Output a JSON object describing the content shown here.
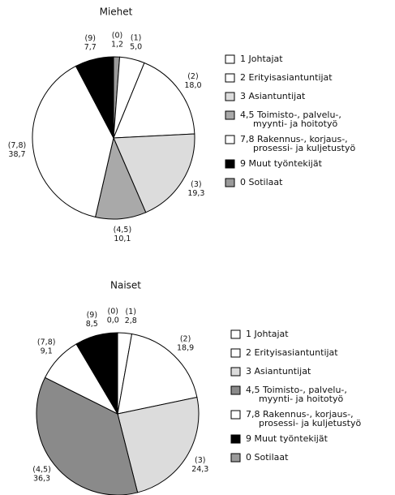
{
  "chart_data": [
    {
      "type": "pie",
      "title": "Miehet",
      "categories": [
        "(0)",
        "(1)",
        "(2)",
        "(3)",
        "(4,5)",
        "(7,8)",
        "(9)"
      ],
      "values": [
        1.2,
        5.0,
        18.0,
        19.3,
        10.1,
        38.7,
        7.7
      ],
      "value_labels": [
        "1,2",
        "5,0",
        "18,0",
        "19,3",
        "10,1",
        "38,7",
        "7,7"
      ],
      "colors": [
        "#9a9a9a",
        "#ffffff",
        "#ffffff",
        "#dcdcdc",
        "#a9a9a9",
        "#ffffff",
        "#000000"
      ],
      "legend": [
        {
          "label": [
            "1 Johtajat"
          ],
          "color": "#ffffff"
        },
        {
          "label": [
            "2 Erityisasiantuntijat"
          ],
          "color": "#ffffff"
        },
        {
          "label": [
            "3 Asiantuntijat"
          ],
          "color": "#dcdcdc"
        },
        {
          "label": [
            "4,5 Toimisto-, palvelu-,",
            "myynti- ja hoitotyö"
          ],
          "color": "#a9a9a9"
        },
        {
          "label": [
            "7,8 Rakennus-, korjaus-,",
            "prosessi- ja kuljetustyö"
          ],
          "color": "#ffffff"
        },
        {
          "label": [
            "9 Muut työntekijät"
          ],
          "color": "#000000"
        },
        {
          "label": [
            "0 Sotilaat"
          ],
          "color": "#9a9a9a"
        }
      ]
    },
    {
      "type": "pie",
      "title": "Naiset",
      "categories": [
        "(0)",
        "(1)",
        "(2)",
        "(3)",
        "(4,5)",
        "(7,8)",
        "(9)"
      ],
      "values": [
        0.0,
        2.8,
        18.9,
        24.3,
        36.3,
        9.1,
        8.5
      ],
      "value_labels": [
        "0,0",
        "2,8",
        "18,9",
        "24,3",
        "36,3",
        "9,1",
        "8,5"
      ],
      "colors": [
        "#9a9a9a",
        "#ffffff",
        "#ffffff",
        "#dcdcdc",
        "#8a8a8a",
        "#ffffff",
        "#000000"
      ],
      "legend": [
        {
          "label": [
            "1 Johtajat"
          ],
          "color": "#ffffff"
        },
        {
          "label": [
            "2 Erityisasiantuntijat"
          ],
          "color": "#ffffff"
        },
        {
          "label": [
            "3 Asiantuntijat"
          ],
          "color": "#dcdcdc"
        },
        {
          "label": [
            "4,5 Toimisto-, palvelu-,",
            "myynti- ja hoitotyö"
          ],
          "color": "#8a8a8a"
        },
        {
          "label": [
            "7,8 Rakennus-, korjaus-,",
            "prosessi- ja kuljetustyö"
          ],
          "color": "#ffffff"
        },
        {
          "label": [
            "9 Muut työntekijät"
          ],
          "color": "#000000"
        },
        {
          "label": [
            "0 Sotilaat"
          ],
          "color": "#9a9a9a"
        }
      ]
    }
  ]
}
